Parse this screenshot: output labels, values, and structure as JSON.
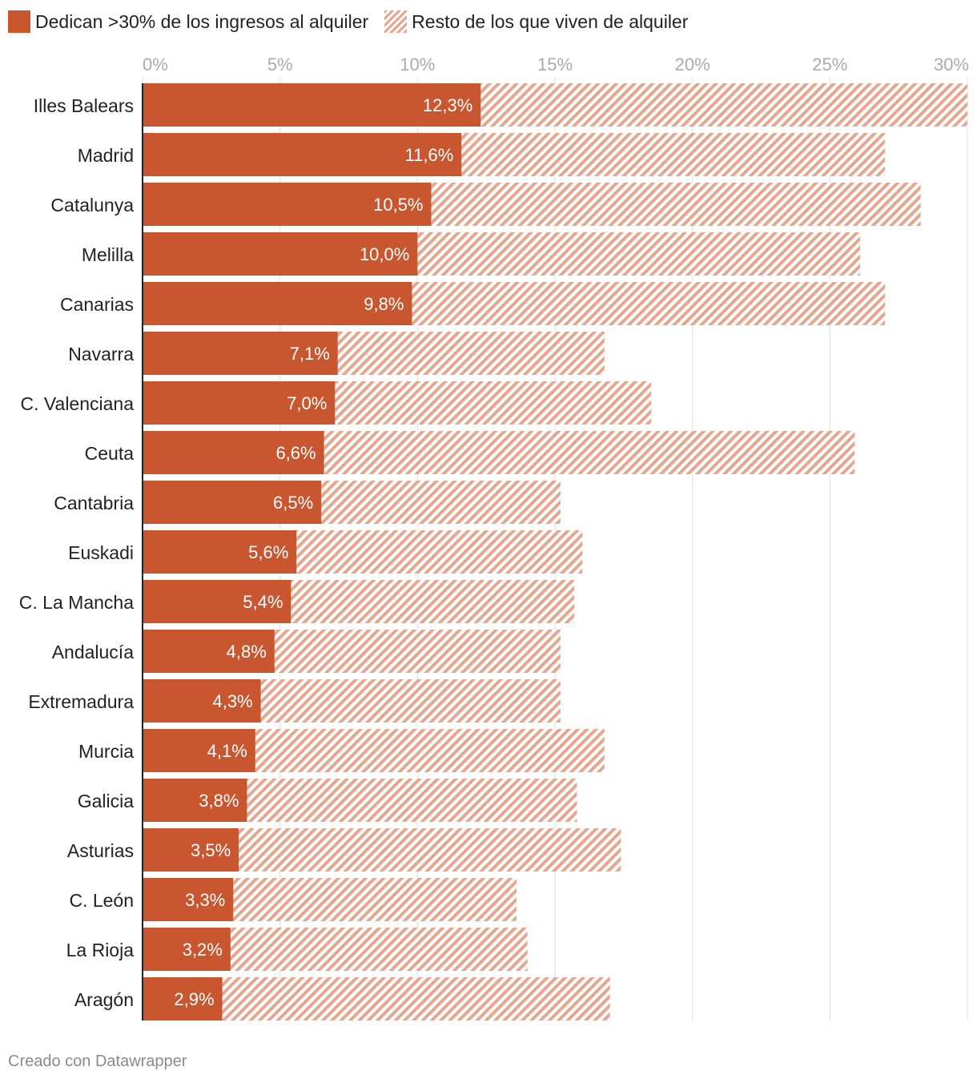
{
  "legend": {
    "items": [
      {
        "label": "Dedican >30% de los ingresos al alquiler",
        "pattern": "solid"
      },
      {
        "label": "Resto de los que viven de alquiler",
        "pattern": "hatched"
      }
    ]
  },
  "footer": {
    "text": "Creado con Datawrapper"
  },
  "colors": {
    "primary": "#c8562e",
    "hatch": "#e6a68e",
    "grid": "#dddddd",
    "tick_text": "#aaaaaa"
  },
  "chart_data": {
    "type": "bar",
    "orientation": "horizontal",
    "stacked": true,
    "xlim": [
      0,
      30
    ],
    "x_ticks": [
      "0%",
      "5%",
      "10%",
      "15%",
      "20%",
      "25%",
      "30%"
    ],
    "grid": true,
    "legend_position": "top-left",
    "categories": [
      "Illes Balears",
      "Madrid",
      "Catalunya",
      "Melilla",
      "Canarias",
      "Navarra",
      "C. Valenciana",
      "Ceuta",
      "Cantabria",
      "Euskadi",
      "C. La Mancha",
      "Andalucía",
      "Extremadura",
      "Murcia",
      "Galicia",
      "Asturias",
      "C. León",
      "La Rioja",
      "Aragón"
    ],
    "series": [
      {
        "name": "Dedican >30% de los ingresos al alquiler",
        "values": [
          12.3,
          11.6,
          10.5,
          10.0,
          9.8,
          7.1,
          7.0,
          6.6,
          6.5,
          5.6,
          5.4,
          4.8,
          4.3,
          4.1,
          3.8,
          3.5,
          3.3,
          3.2,
          2.9
        ],
        "labels": [
          "12,3%",
          "11,6%",
          "10,5%",
          "10,0%",
          "9,8%",
          "7,1%",
          "7,0%",
          "6,6%",
          "6,5%",
          "5,6%",
          "5,4%",
          "4,8%",
          "4,3%",
          "4,1%",
          "3,8%",
          "3,5%",
          "3,3%",
          "3,2%",
          "2,9%"
        ]
      },
      {
        "name": "Resto de los que viven de alquiler",
        "values": [
          18.0,
          15.4,
          17.8,
          16.1,
          17.2,
          9.7,
          11.5,
          19.3,
          8.7,
          10.4,
          10.3,
          10.4,
          10.9,
          12.7,
          12.0,
          13.9,
          10.3,
          10.8,
          14.1
        ]
      }
    ]
  }
}
